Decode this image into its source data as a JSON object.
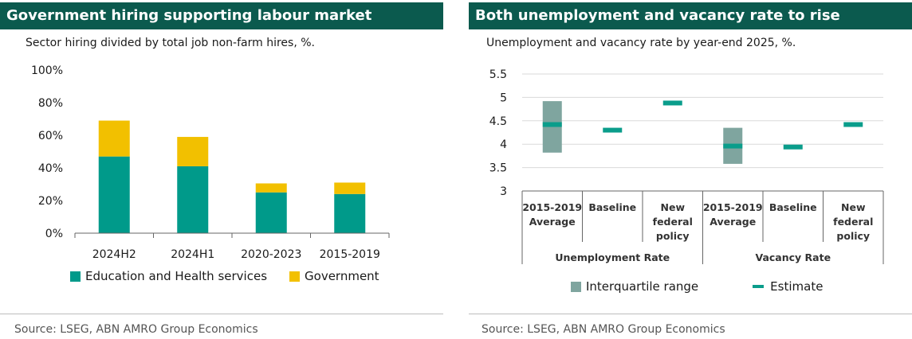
{
  "colors": {
    "title_bar": "#0b5a4e",
    "education": "#009a8a",
    "government": "#f2c000",
    "iqr": "#7fa59f",
    "estimate": "#0a9d8b",
    "axis": "#666666"
  },
  "left": {
    "title": "Government hiring supporting labour market",
    "subtitle": "Sector hiring divided by total job non-farm hires, %.",
    "source": "Source:  LSEG, ABN AMRO Group Economics",
    "legend": [
      "Education and Health services",
      "Government"
    ]
  },
  "right": {
    "title": "Both unemployment and vacancy rate to rise",
    "subtitle": "Unemployment and vacancy rate by year-end 2025, %.",
    "source": "Source: LSEG, ABN AMRO Group Economics",
    "legend": [
      "Interquartile range",
      "Estimate"
    ]
  },
  "chart_data": [
    {
      "type": "bar",
      "stacked": true,
      "title": "Government hiring supporting labour market",
      "subtitle": "Sector hiring divided by total job non-farm hires, %.",
      "categories": [
        "2024H2",
        "2024H1",
        "2020-2023",
        "2015-2019"
      ],
      "series": [
        {
          "name": "Education and Health services",
          "values": [
            47,
            41,
            25,
            24
          ]
        },
        {
          "name": "Government",
          "values": [
            22,
            18,
            5.5,
            7
          ]
        }
      ],
      "ylim": [
        0,
        100
      ],
      "yticks": [
        "0%",
        "20%",
        "40%",
        "60%",
        "80%",
        "100%"
      ],
      "legend_position": "bottom"
    },
    {
      "type": "range",
      "title": "Both unemployment and vacancy rate to rise",
      "subtitle": "Unemployment and vacancy rate by year-end 2025, %.",
      "groups": [
        "Unemployment Rate",
        "Vacancy Rate"
      ],
      "categories": [
        {
          "group": "Unemployment Rate",
          "label": "2015-2019 Average",
          "lines": [
            "2015-2019",
            "Average"
          ],
          "iqr": [
            3.82,
            4.92
          ],
          "estimate": 4.42
        },
        {
          "group": "Unemployment Rate",
          "label": "Baseline",
          "lines": [
            "Baseline"
          ],
          "iqr": null,
          "estimate": 4.3
        },
        {
          "group": "Unemployment Rate",
          "label": "New federal policy",
          "lines": [
            "New",
            "federal",
            "policy"
          ],
          "iqr": null,
          "estimate": 4.88
        },
        {
          "group": "Vacancy Rate",
          "label": "2015-2019 Average",
          "lines": [
            "2015-2019",
            "Average"
          ],
          "iqr": [
            3.58,
            4.35
          ],
          "estimate": 3.96
        },
        {
          "group": "Vacancy Rate",
          "label": "Baseline",
          "lines": [
            "Baseline"
          ],
          "iqr": null,
          "estimate": 3.94
        },
        {
          "group": "Vacancy Rate",
          "label": "New federal policy",
          "lines": [
            "New",
            "federal",
            "policy"
          ],
          "iqr": null,
          "estimate": 4.42
        }
      ],
      "ylim": [
        3,
        5.5
      ],
      "yticks": [
        "3",
        "3.5",
        "4",
        "4.5",
        "5",
        "5.5"
      ],
      "grid": true,
      "legend": [
        "Interquartile range",
        "Estimate"
      ],
      "legend_position": "bottom"
    }
  ]
}
